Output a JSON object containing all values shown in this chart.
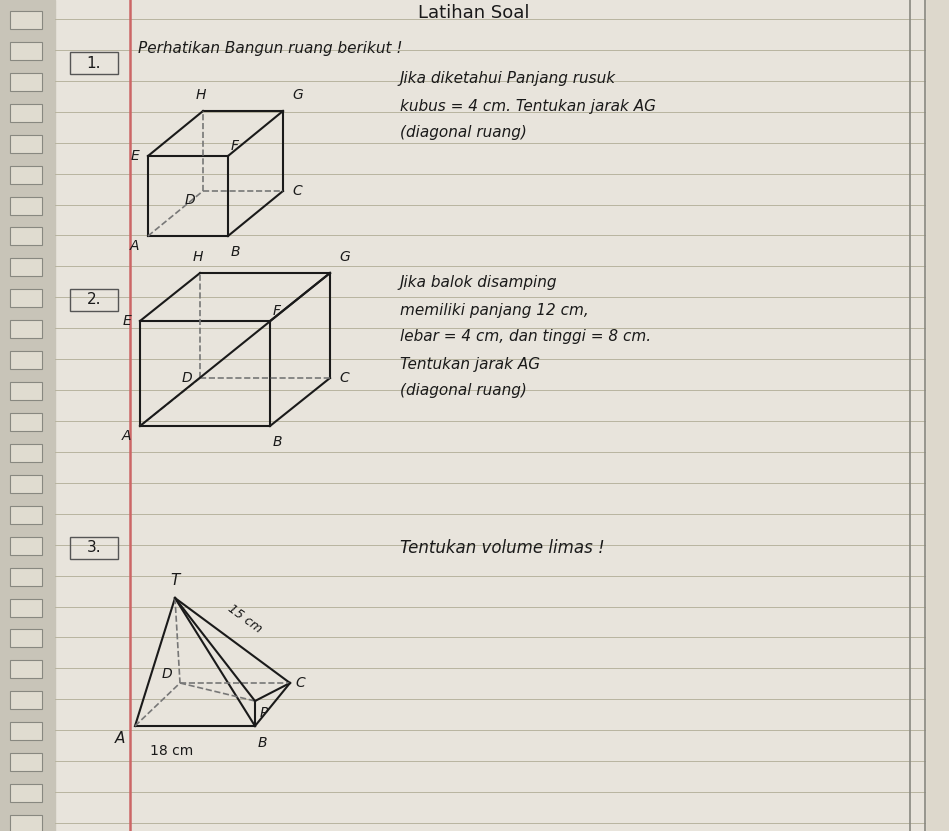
{
  "title": "Latihan Soal",
  "bg_color": "#e8e4dc",
  "line_color": "#b8b4a8",
  "text_color": "#1a1a1a",
  "q1_label": "1.",
  "q1_text": "Perhatikan Bangun ruang berikut !",
  "q1_sub1": "Jika diketahui Panjang rusuk",
  "q1_sub2": "kubus = 4 cm. Tentukan jarak AG",
  "q1_sub3": "(diagonal ruang)",
  "q2_label": "2.",
  "q2_text": "Jika balok disamping",
  "q2_sub1": "memiliki panjang 12 cm,",
  "q2_sub2": "lebar = 4 cm, dan tinggi = 8 cm.",
  "q2_sub3": "Tentukan jarak AG",
  "q2_sub4": "(diagonal ruang)",
  "q3_label": "3.",
  "q3_text": "Tentukan volume limas !",
  "dim_15cm": "15 cm",
  "dim_18cm": "18 cm"
}
